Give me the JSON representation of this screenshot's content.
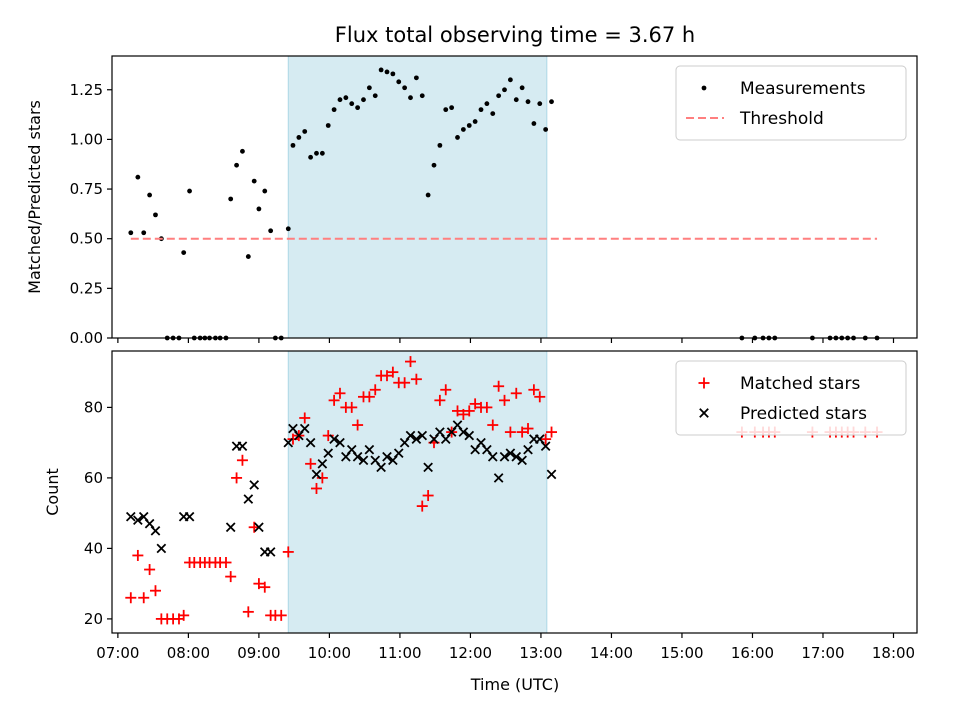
{
  "chart_data": [
    {
      "type": "scatter",
      "title": "Flux total observing time = 3.67 h",
      "ylabel": "Matched/Predicted stars",
      "xlabel": "",
      "ylim": [
        0,
        1.42
      ],
      "yticks": [
        0.0,
        0.25,
        0.5,
        0.75,
        1.0,
        1.25
      ],
      "ytick_labels": [
        "0.00",
        "0.25",
        "0.50",
        "0.75",
        "1.00",
        "1.25"
      ],
      "xlim": [
        "06:55",
        "18:20"
      ],
      "shaded_interval": [
        "09:25",
        "13:05"
      ],
      "legend_position": "upper right",
      "series": [
        {
          "name": "Measurements",
          "style": "point",
          "color": "#000000",
          "points": [
            [
              "07:11",
              0.53
            ],
            [
              "07:17",
              0.81
            ],
            [
              "07:22",
              0.53
            ],
            [
              "07:27",
              0.72
            ],
            [
              "07:32",
              0.62
            ],
            [
              "07:37",
              0.5
            ],
            [
              "07:42",
              0.0
            ],
            [
              "07:47",
              0.0
            ],
            [
              "07:52",
              0.0
            ],
            [
              "07:56",
              0.43
            ],
            [
              "08:01",
              0.74
            ],
            [
              "08:05",
              0.0
            ],
            [
              "08:10",
              0.0
            ],
            [
              "08:14",
              0.0
            ],
            [
              "08:18",
              0.0
            ],
            [
              "08:23",
              0.0
            ],
            [
              "08:27",
              0.0
            ],
            [
              "08:32",
              0.0
            ],
            [
              "08:36",
              0.7
            ],
            [
              "08:41",
              0.87
            ],
            [
              "08:46",
              0.94
            ],
            [
              "08:51",
              0.41
            ],
            [
              "08:56",
              0.79
            ],
            [
              "09:00",
              0.65
            ],
            [
              "09:05",
              0.74
            ],
            [
              "09:10",
              0.54
            ],
            [
              "09:14",
              0.0
            ],
            [
              "09:19",
              0.0
            ],
            [
              "09:25",
              0.55
            ],
            [
              "09:29",
              0.97
            ],
            [
              "09:34",
              1.01
            ],
            [
              "09:39",
              1.04
            ],
            [
              "09:44",
              0.91
            ],
            [
              "09:49",
              0.93
            ],
            [
              "09:54",
              0.93
            ],
            [
              "09:59",
              1.07
            ],
            [
              "10:04",
              1.15
            ],
            [
              "10:09",
              1.2
            ],
            [
              "10:14",
              1.21
            ],
            [
              "10:19",
              1.18
            ],
            [
              "10:24",
              1.16
            ],
            [
              "10:29",
              1.2
            ],
            [
              "10:34",
              1.26
            ],
            [
              "10:39",
              1.22
            ],
            [
              "10:44",
              1.35
            ],
            [
              "10:49",
              1.34
            ],
            [
              "10:54",
              1.33
            ],
            [
              "10:59",
              1.29
            ],
            [
              "11:04",
              1.26
            ],
            [
              "11:09",
              1.21
            ],
            [
              "11:14",
              1.31
            ],
            [
              "11:19",
              1.22
            ],
            [
              "11:24",
              0.72
            ],
            [
              "11:29",
              0.87
            ],
            [
              "11:34",
              0.97
            ],
            [
              "11:39",
              1.15
            ],
            [
              "11:44",
              1.16
            ],
            [
              "11:49",
              1.01
            ],
            [
              "11:54",
              1.05
            ],
            [
              "11:59",
              1.07
            ],
            [
              "12:04",
              1.09
            ],
            [
              "12:09",
              1.15
            ],
            [
              "12:14",
              1.18
            ],
            [
              "12:19",
              1.13
            ],
            [
              "12:24",
              1.22
            ],
            [
              "12:29",
              1.25
            ],
            [
              "12:34",
              1.3
            ],
            [
              "12:39",
              1.2
            ],
            [
              "12:44",
              1.26
            ],
            [
              "12:49",
              1.19
            ],
            [
              "12:54",
              1.08
            ],
            [
              "12:59",
              1.18
            ],
            [
              "13:04",
              1.05
            ],
            [
              "13:09",
              1.19
            ],
            [
              "15:51",
              0.0
            ],
            [
              "16:02",
              0.0
            ],
            [
              "16:09",
              0.0
            ],
            [
              "16:14",
              0.0
            ],
            [
              "16:19",
              0.0
            ],
            [
              "16:51",
              0.0
            ],
            [
              "17:06",
              0.0
            ],
            [
              "17:11",
              0.0
            ],
            [
              "17:16",
              0.0
            ],
            [
              "17:21",
              0.0
            ],
            [
              "17:26",
              0.0
            ],
            [
              "17:36",
              0.0
            ],
            [
              "17:46",
              0.0
            ]
          ]
        },
        {
          "name": "Threshold",
          "style": "dashed-line",
          "color": "#ff7f7f",
          "points": [
            [
              "07:11",
              0.5
            ],
            [
              "17:46",
              0.5
            ]
          ]
        }
      ]
    },
    {
      "type": "scatter",
      "title": "",
      "xlabel": "Time (UTC)",
      "ylabel": "Count",
      "ylim": [
        16,
        96
      ],
      "yticks": [
        20,
        40,
        60,
        80
      ],
      "ytick_labels": [
        "20",
        "40",
        "60",
        "80"
      ],
      "xlim": [
        "06:55",
        "18:20"
      ],
      "xticks": [
        "07:00",
        "08:00",
        "09:00",
        "10:00",
        "11:00",
        "12:00",
        "13:00",
        "14:00",
        "15:00",
        "16:00",
        "17:00",
        "18:00"
      ],
      "shaded_interval": [
        "09:25",
        "13:05"
      ],
      "legend_position": "upper right",
      "series": [
        {
          "name": "Matched stars",
          "style": "plus",
          "color": "#ff0000",
          "points": [
            [
              "07:11",
              26
            ],
            [
              "07:17",
              38
            ],
            [
              "07:22",
              26
            ],
            [
              "07:27",
              34
            ],
            [
              "07:32",
              28
            ],
            [
              "07:37",
              20
            ],
            [
              "07:42",
              20
            ],
            [
              "07:47",
              20
            ],
            [
              "07:52",
              20
            ],
            [
              "07:56",
              21
            ],
            [
              "08:01",
              36
            ],
            [
              "08:05",
              36
            ],
            [
              "08:10",
              36
            ],
            [
              "08:14",
              36
            ],
            [
              "08:18",
              36
            ],
            [
              "08:23",
              36
            ],
            [
              "08:27",
              36
            ],
            [
              "08:32",
              36
            ],
            [
              "08:36",
              32
            ],
            [
              "08:41",
              60
            ],
            [
              "08:46",
              65
            ],
            [
              "08:51",
              22
            ],
            [
              "08:56",
              46
            ],
            [
              "09:00",
              30
            ],
            [
              "09:05",
              29
            ],
            [
              "09:10",
              21
            ],
            [
              "09:14",
              21
            ],
            [
              "09:19",
              21
            ],
            [
              "09:25",
              39
            ],
            [
              "09:29",
              71
            ],
            [
              "09:34",
              72
            ],
            [
              "09:39",
              77
            ],
            [
              "09:44",
              64
            ],
            [
              "09:49",
              57
            ],
            [
              "09:54",
              60
            ],
            [
              "09:59",
              72
            ],
            [
              "10:04",
              82
            ],
            [
              "10:09",
              84
            ],
            [
              "10:14",
              80
            ],
            [
              "10:19",
              80
            ],
            [
              "10:24",
              75
            ],
            [
              "10:29",
              83
            ],
            [
              "10:34",
              83
            ],
            [
              "10:39",
              85
            ],
            [
              "10:44",
              89
            ],
            [
              "10:49",
              89
            ],
            [
              "10:54",
              90
            ],
            [
              "10:59",
              87
            ],
            [
              "11:04",
              87
            ],
            [
              "11:09",
              93
            ],
            [
              "11:14",
              88
            ],
            [
              "11:19",
              52
            ],
            [
              "11:24",
              55
            ],
            [
              "11:29",
              70
            ],
            [
              "11:34",
              82
            ],
            [
              "11:39",
              85
            ],
            [
              "11:44",
              73
            ],
            [
              "11:49",
              79
            ],
            [
              "11:54",
              78
            ],
            [
              "11:59",
              79
            ],
            [
              "12:04",
              81
            ],
            [
              "12:09",
              80
            ],
            [
              "12:14",
              80
            ],
            [
              "12:19",
              75
            ],
            [
              "12:24",
              86
            ],
            [
              "12:29",
              82
            ],
            [
              "12:34",
              73
            ],
            [
              "12:39",
              84
            ],
            [
              "12:44",
              73
            ],
            [
              "12:49",
              74
            ],
            [
              "12:54",
              85
            ],
            [
              "12:59",
              83
            ],
            [
              "13:04",
              71
            ],
            [
              "13:09",
              73
            ],
            [
              "15:51",
              73
            ],
            [
              "16:02",
              73
            ],
            [
              "16:09",
              73
            ],
            [
              "16:14",
              73
            ],
            [
              "16:19",
              73
            ],
            [
              "16:51",
              73
            ],
            [
              "17:06",
              73
            ],
            [
              "17:11",
              73
            ],
            [
              "17:16",
              73
            ],
            [
              "17:21",
              73
            ],
            [
              "17:26",
              73
            ],
            [
              "17:36",
              73
            ],
            [
              "17:46",
              73
            ]
          ]
        },
        {
          "name": "Predicted stars",
          "style": "x",
          "color": "#000000",
          "points": [
            [
              "07:11",
              49
            ],
            [
              "07:17",
              48
            ],
            [
              "07:22",
              49
            ],
            [
              "07:27",
              47
            ],
            [
              "07:32",
              45
            ],
            [
              "07:37",
              40
            ],
            [
              "07:56",
              49
            ],
            [
              "08:01",
              49
            ],
            [
              "08:36",
              46
            ],
            [
              "08:41",
              69
            ],
            [
              "08:46",
              69
            ],
            [
              "08:51",
              54
            ],
            [
              "08:56",
              58
            ],
            [
              "09:00",
              46
            ],
            [
              "09:05",
              39
            ],
            [
              "09:10",
              39
            ],
            [
              "09:25",
              70
            ],
            [
              "09:29",
              74
            ],
            [
              "09:34",
              72
            ],
            [
              "09:39",
              74
            ],
            [
              "09:44",
              70
            ],
            [
              "09:49",
              61
            ],
            [
              "09:54",
              64
            ],
            [
              "09:59",
              67
            ],
            [
              "10:04",
              71
            ],
            [
              "10:09",
              70
            ],
            [
              "10:14",
              66
            ],
            [
              "10:19",
              68
            ],
            [
              "10:24",
              66
            ],
            [
              "10:29",
              65
            ],
            [
              "10:34",
              68
            ],
            [
              "10:39",
              65
            ],
            [
              "10:44",
              63
            ],
            [
              "10:49",
              66
            ],
            [
              "10:54",
              65
            ],
            [
              "10:59",
              67
            ],
            [
              "11:04",
              70
            ],
            [
              "11:09",
              72
            ],
            [
              "11:14",
              71
            ],
            [
              "11:19",
              72
            ],
            [
              "11:24",
              63
            ],
            [
              "11:29",
              71
            ],
            [
              "11:34",
              73
            ],
            [
              "11:39",
              71
            ],
            [
              "11:44",
              73
            ],
            [
              "11:49",
              75
            ],
            [
              "11:54",
              73
            ],
            [
              "11:59",
              72
            ],
            [
              "12:04",
              68
            ],
            [
              "12:09",
              70
            ],
            [
              "12:14",
              68
            ],
            [
              "12:19",
              66
            ],
            [
              "12:24",
              60
            ],
            [
              "12:29",
              66
            ],
            [
              "12:34",
              67
            ],
            [
              "12:39",
              66
            ],
            [
              "12:44",
              65
            ],
            [
              "12:49",
              68
            ],
            [
              "12:54",
              71
            ],
            [
              "12:59",
              71
            ],
            [
              "13:04",
              69
            ],
            [
              "13:09",
              61
            ]
          ]
        }
      ]
    }
  ]
}
